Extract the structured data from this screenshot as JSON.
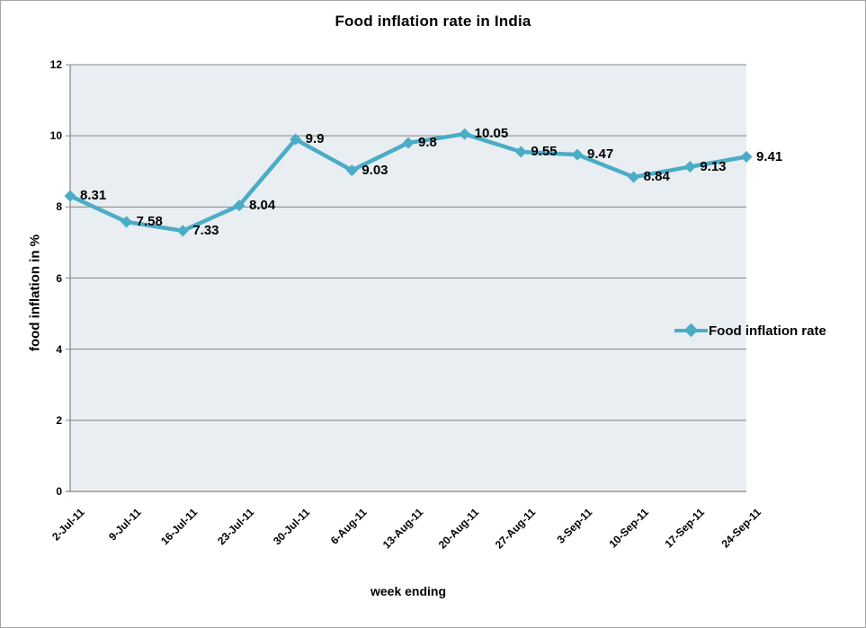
{
  "chart_data": {
    "type": "line",
    "title": "Food inflation rate in India",
    "xlabel": "week ending",
    "ylabel": "food inflation in %",
    "x": [
      "2-Jul-11",
      "9-Jul-11",
      "16-Jul-11",
      "23-Jul-11",
      "30-Jul-11",
      "6-Aug-11",
      "13-Aug-11",
      "20-Aug-11",
      "27-Aug-11",
      "3-Sep-11",
      "10-Sep-11",
      "17-Sep-11",
      "24-Sep-11"
    ],
    "series": [
      {
        "name": "Food inflation rate",
        "values": [
          8.31,
          7.58,
          7.33,
          8.04,
          9.9,
          9.03,
          9.8,
          10.05,
          9.55,
          9.47,
          8.84,
          9.13,
          9.41
        ],
        "color": "#4BACC6",
        "marker": "diamond",
        "data_labels_shown": true
      }
    ],
    "ylim": [
      0,
      12
    ],
    "yticks": [
      0,
      2,
      4,
      6,
      8,
      10,
      12
    ],
    "grid": "horizontal",
    "legend_position": "right-middle",
    "colors": {
      "plot_bg": "#E8EEF1",
      "gridline": "#848484",
      "axis": "#848484",
      "frame_border": "#A6A6A6",
      "text": "#000000"
    }
  }
}
